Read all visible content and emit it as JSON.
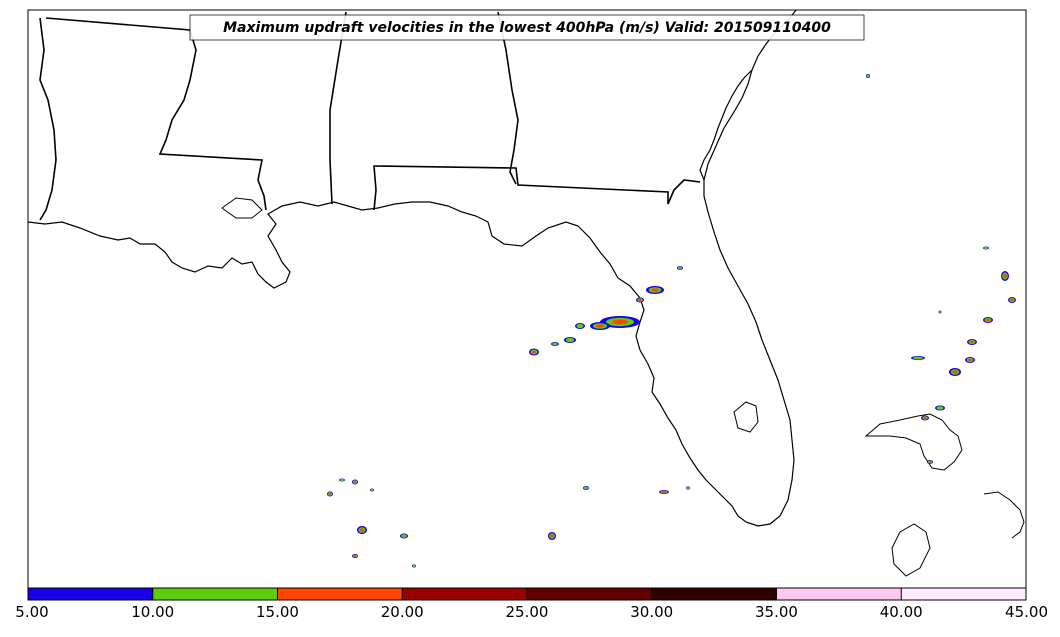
{
  "title": "Maximum updraft velocities in the lowest 400hPa (m/s) Valid: 201509110400",
  "colorbar": {
    "ticks": [
      "5.00",
      "10.00",
      "15.00",
      "20.00",
      "25.00",
      "30.00",
      "35.00",
      "40.00",
      "45.00"
    ],
    "bins": [
      {
        "from": 5,
        "to": 10,
        "color": "#1a00e8"
      },
      {
        "from": 10,
        "to": 15,
        "color": "#5ccc0c"
      },
      {
        "from": 15,
        "to": 20,
        "color": "#ff4400"
      },
      {
        "from": 20,
        "to": 25,
        "color": "#9b0000"
      },
      {
        "from": 25,
        "to": 30,
        "color": "#620000"
      },
      {
        "from": 30,
        "to": 35,
        "color": "#2e0000"
      },
      {
        "from": 35,
        "to": 40,
        "color": "#ffc8f4"
      },
      {
        "from": 40,
        "to": 45,
        "color": "#ffeaff"
      }
    ]
  }
}
